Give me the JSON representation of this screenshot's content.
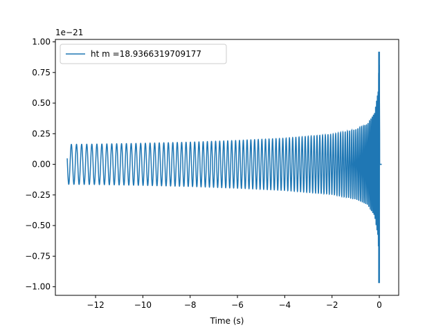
{
  "chart_data": {
    "type": "line",
    "title": "",
    "xlabel": "Time (s)",
    "ylabel": "",
    "y_offset_label": "1e−21",
    "xlim": [
      -13.7,
      0.82
    ],
    "ylim": [
      -1.07,
      1.02
    ],
    "x_ticks": [
      -12,
      -10,
      -8,
      -6,
      -4,
      -2,
      0
    ],
    "x_tick_labels": [
      "−12",
      "−10",
      "−8",
      "−6",
      "−4",
      "−2",
      "0"
    ],
    "y_ticks": [
      -1.0,
      -0.75,
      -0.5,
      -0.25,
      0.0,
      0.25,
      0.5,
      0.75,
      1.0
    ],
    "y_tick_labels": [
      "−1.00",
      "−0.75",
      "−0.50",
      "−0.25",
      "0.00",
      "0.25",
      "0.50",
      "0.75",
      "1.00"
    ],
    "grid": false,
    "legend_position": "top-left",
    "series": [
      {
        "name": "ht m =18.9366319709177",
        "color": "#1f77b4",
        "t_start": -13.2,
        "t_merger": 0.0,
        "t_end": 0.1,
        "envelope": {
          "t": [
            -13.2,
            -12,
            -10,
            -8,
            -6,
            -4,
            -2,
            -1,
            -0.5,
            -0.2,
            -0.05,
            0.0,
            0.02,
            0.1
          ],
          "amp": [
            0.163,
            0.165,
            0.172,
            0.181,
            0.195,
            0.213,
            0.245,
            0.285,
            0.33,
            0.42,
            0.6,
            0.92,
            0.0,
            0.0
          ]
        },
        "min_peak": -0.97,
        "max_peak": 0.92
      }
    ]
  }
}
